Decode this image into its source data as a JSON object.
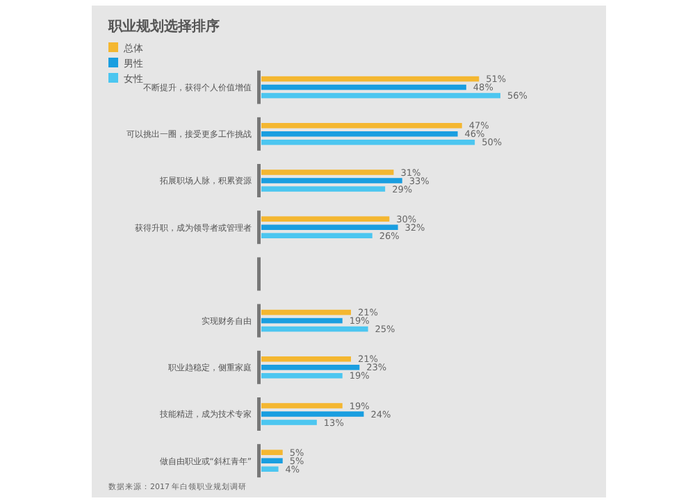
{
  "chart_data": {
    "type": "bar",
    "orientation": "horizontal",
    "title": "职业规划选择排序",
    "categories": [
      "不断提升，获得个人价值增值",
      "可以挑出一圈，接受更多工作挑战",
      "拓展职场人脉，积累资源",
      "获得升职，成为领导者或管理者",
      null,
      "实现财务自由",
      "职业趋稳定，侧重家庭",
      "技能精进，成为技术专家",
      "做自由职业或“斜杠青年”"
    ],
    "series": [
      {
        "name": "总体",
        "color": "#f4b731",
        "values": [
          51,
          47,
          31,
          30,
          null,
          21,
          21,
          19,
          5
        ],
        "value_labels": [
          "51%",
          "47%",
          "31%",
          "30%",
          null,
          "21%",
          "21%",
          "19%",
          "5%"
        ]
      },
      {
        "name": "男性",
        "color": "#1a9ee0",
        "values": [
          48,
          46,
          33,
          32,
          null,
          19,
          23,
          24,
          5
        ],
        "value_labels": [
          "48%",
          "46%",
          "33%",
          "32%",
          null,
          "19%",
          "23%",
          "24%",
          "5%"
        ]
      },
      {
        "name": "女性",
        "color": "#4cc6f0",
        "values": [
          56,
          50,
          29,
          26,
          null,
          25,
          19,
          13,
          4
        ],
        "value_labels": [
          "56%",
          "50%",
          "29%",
          "26%",
          null,
          "25%",
          "19%",
          "13%",
          "4%"
        ]
      }
    ],
    "legend": "top left",
    "annotations": [
      "数据来源：2017 年白领职业规划调研"
    ]
  }
}
